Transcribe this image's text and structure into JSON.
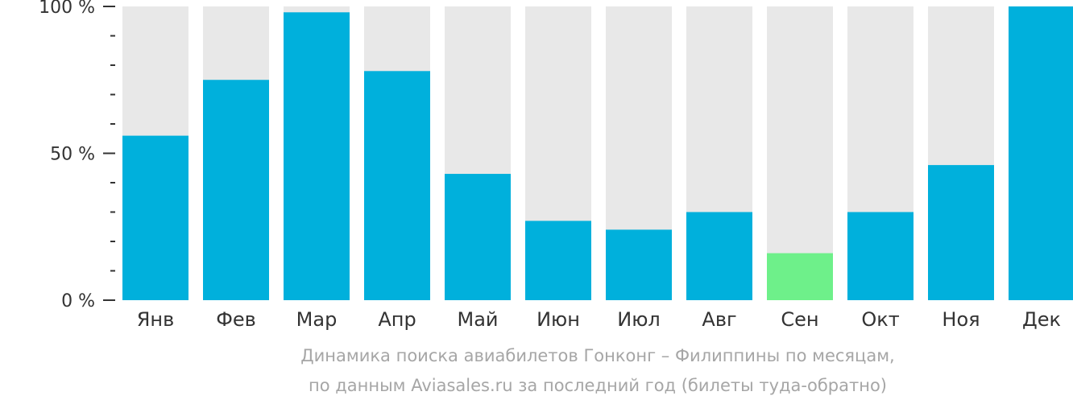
{
  "chart_data": {
    "type": "bar",
    "categories": [
      "Янв",
      "Фев",
      "Мар",
      "Апр",
      "Май",
      "Июн",
      "Июл",
      "Авг",
      "Сен",
      "Окт",
      "Ноя",
      "Дек"
    ],
    "values": [
      56,
      75,
      98,
      78,
      43,
      27,
      24,
      30,
      16,
      30,
      46,
      100
    ],
    "ylim": [
      0,
      100
    ],
    "yticks": [
      {
        "value": 100,
        "label": "100 %"
      },
      {
        "value": 50,
        "label": "50 %"
      },
      {
        "value": 0,
        "label": "0 %"
      }
    ],
    "minor_tick_step": 10,
    "highlight_index": 8,
    "colors": {
      "bar": "#00b0dc",
      "highlight": "#6ef08a",
      "background_bar": "#e8e8e8",
      "axis": "#333333"
    },
    "grid": false,
    "legend": "none"
  },
  "caption": {
    "line1": "Динамика поиска авиабилетов Гонконг – Филиппины по месяцам,",
    "line2": "по данным Aviasales.ru за последний год (билеты туда-обратно)"
  }
}
